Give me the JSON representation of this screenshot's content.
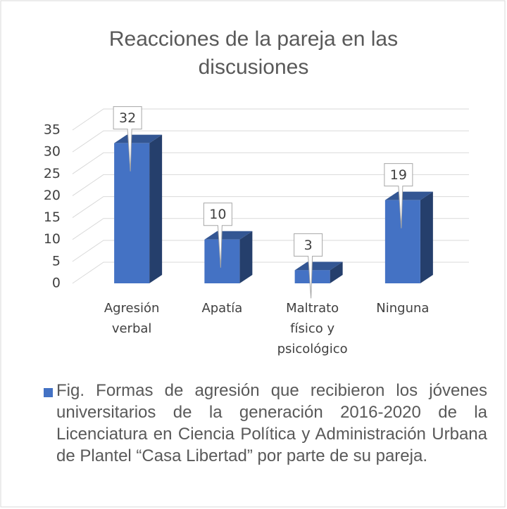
{
  "chart_data": {
    "type": "bar3d",
    "title": "Reacciones de la pareja en las discusiones",
    "categories": [
      "Agresión verbal",
      "Apatía",
      "Maltrato físico y psicológico",
      "Ninguna"
    ],
    "series": [
      {
        "name": "Fig. Formas de agresión que recibieron los jóvenes universitarios de la generación 2016-2020 de la Licenciatura en Ciencia Política y Administración Urbana de Plantel “Casa Libertad” por parte de su pareja.",
        "color": "#4472c4",
        "values": [
          32,
          10,
          3,
          19
        ]
      }
    ],
    "ylim": [
      0,
      35
    ],
    "yticks": [
      0,
      5,
      10,
      15,
      20,
      25,
      30,
      35
    ],
    "grid": true
  }
}
